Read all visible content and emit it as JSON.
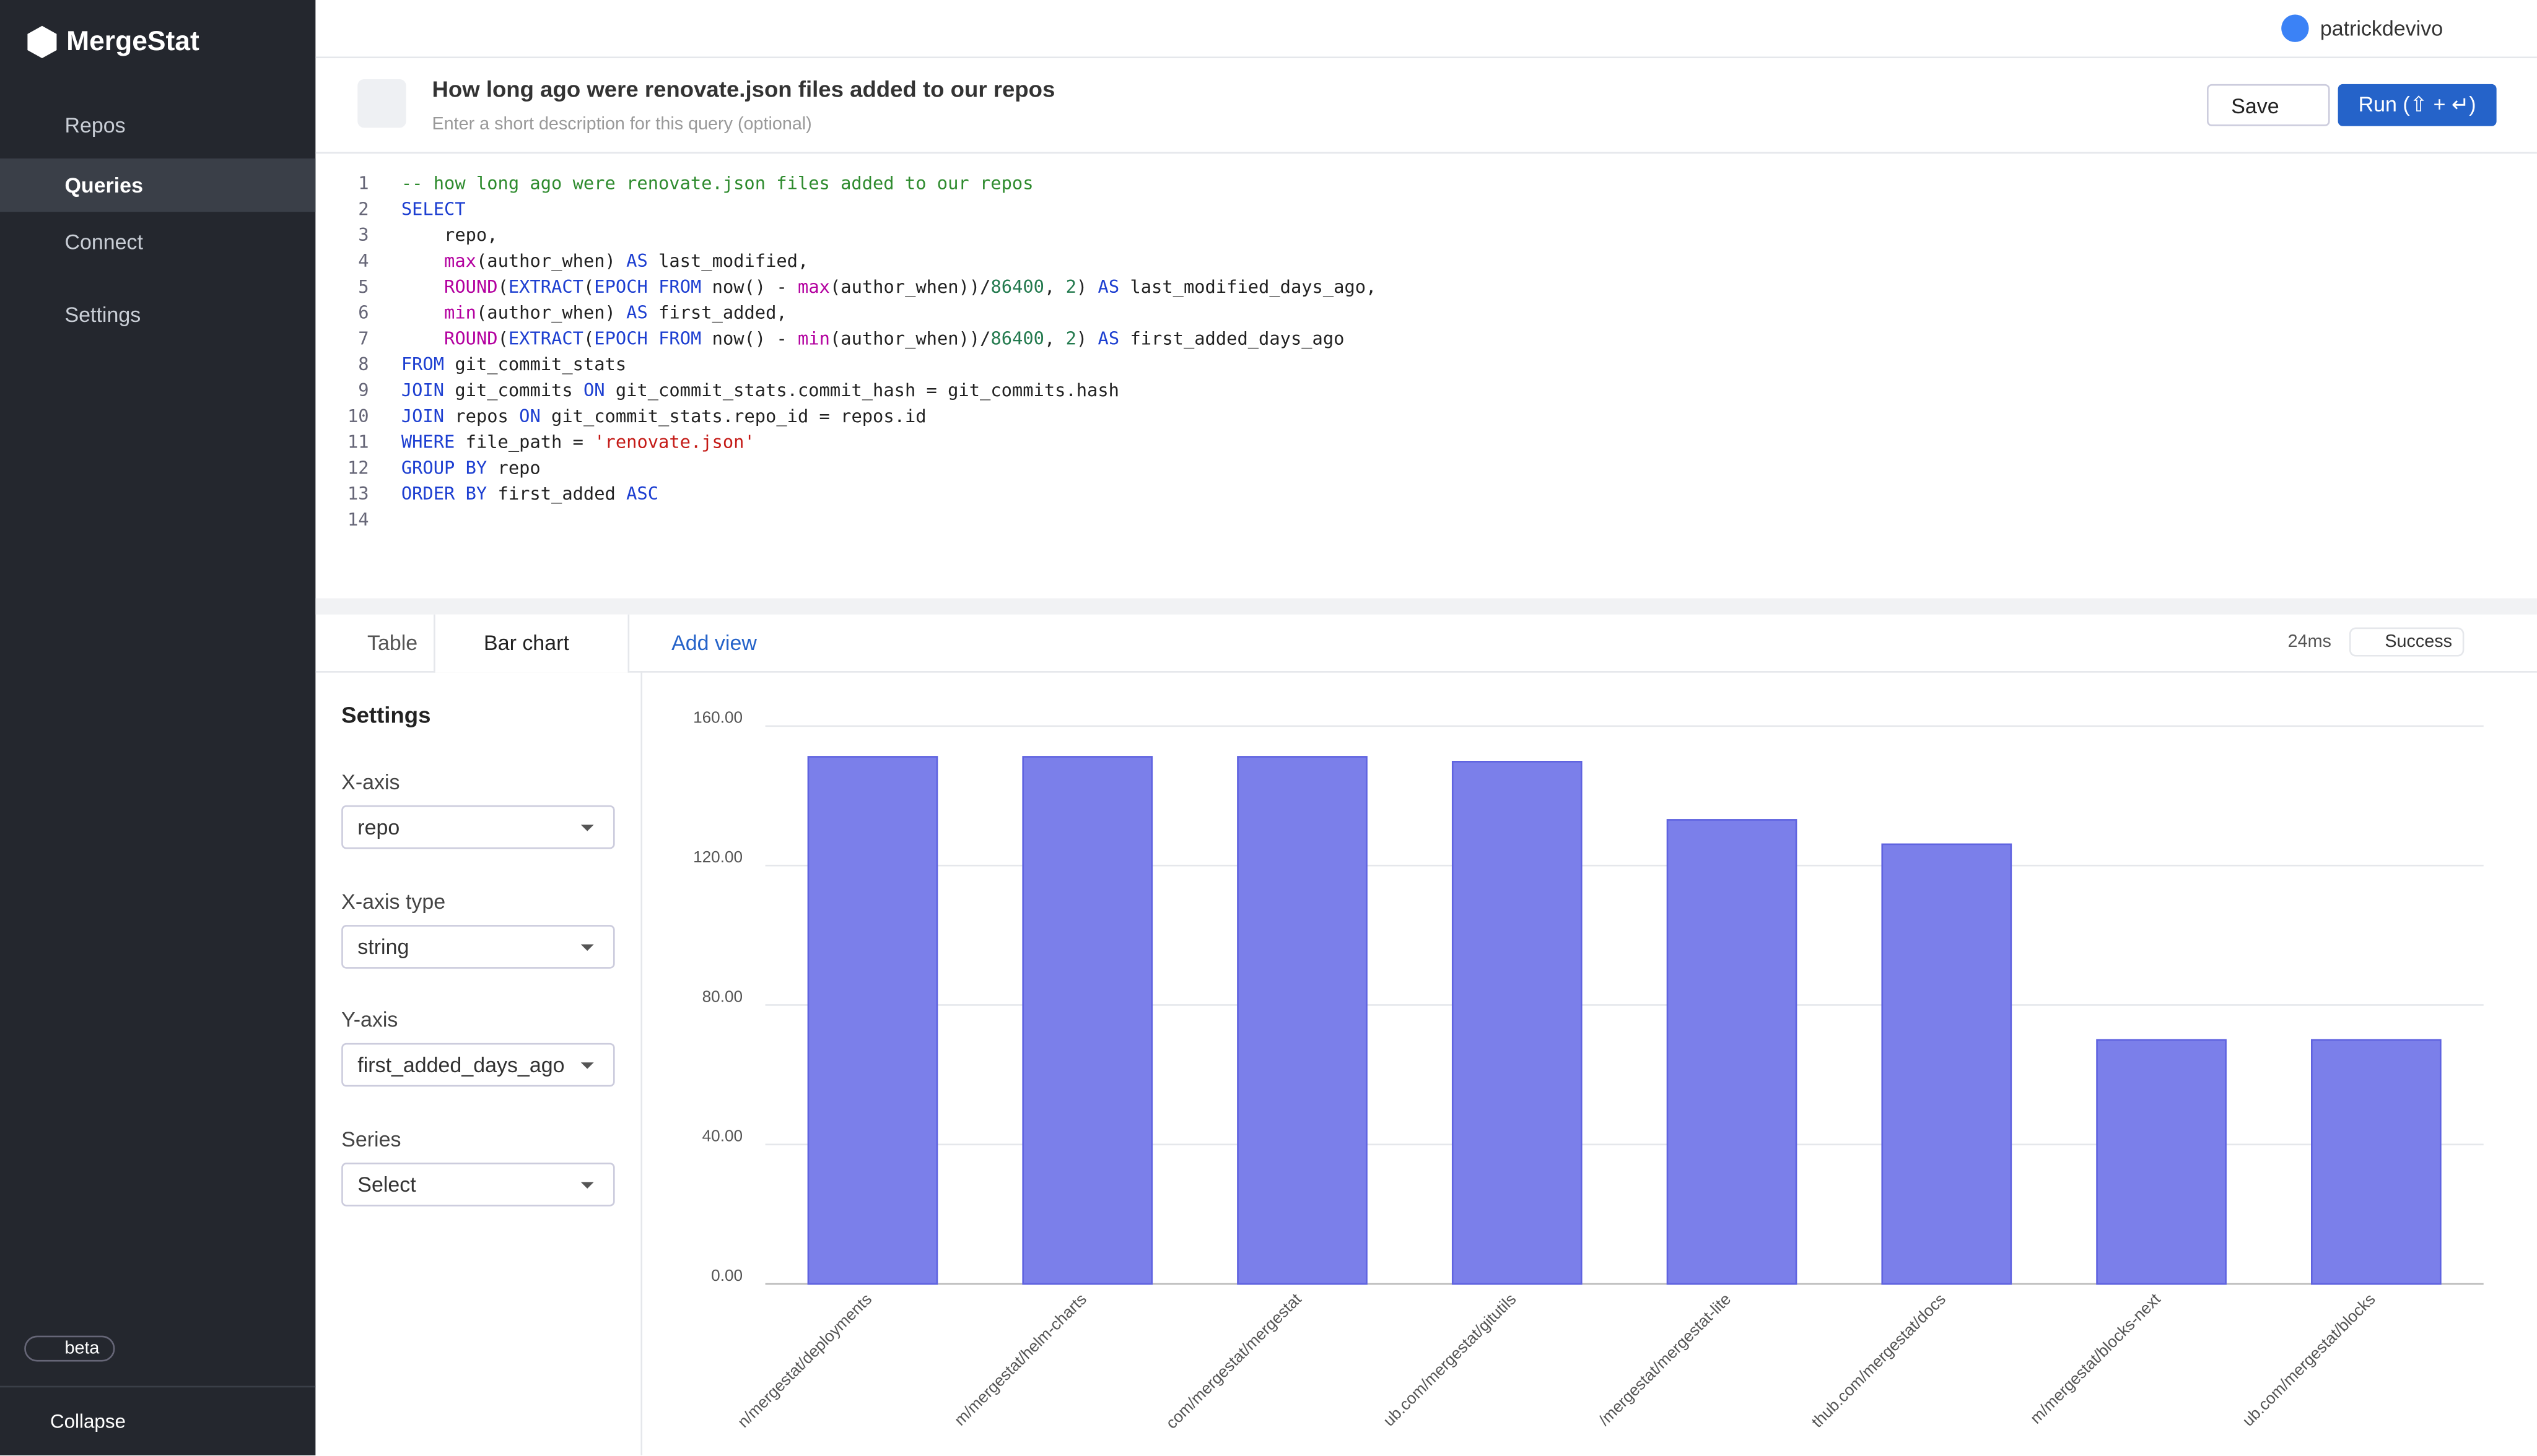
{
  "app": {
    "name": "MergeStat",
    "user": "patrickdevivo",
    "badge": "beta",
    "collapse": "Collapse"
  },
  "sidebar": {
    "items": [
      "Repos",
      "Queries",
      "Connect",
      "Settings"
    ]
  },
  "query": {
    "title": "How long ago were renovate.json files added to our repos",
    "description": "Enter a short description for this query (optional)",
    "save": "Save",
    "run": "Run (⇧ + ↵)"
  },
  "code": {
    "lines": [
      "-- how long ago were renovate.json files added to our repos",
      "SELECT",
      "    repo,",
      "    max(author_when) AS last_modified,",
      "    ROUND(EXTRACT(EPOCH FROM now() - max(author_when))/86400, 2) AS last_modified_days_ago,",
      "    min(author_when) AS first_added,",
      "    ROUND(EXTRACT(EPOCH FROM now() - min(author_when))/86400, 2) AS first_added_days_ago",
      "FROM git_commit_stats",
      "JOIN git_commits ON git_commit_stats.commit_hash = git_commits.hash",
      "JOIN repos ON git_commit_stats.repo_id = repos.id",
      "WHERE file_path = 'renovate.json'",
      "GROUP BY repo",
      "ORDER BY first_added ASC",
      ""
    ]
  },
  "tabs": {
    "table": "Table",
    "chart": "Bar chart",
    "add": "Add view",
    "time": "24ms",
    "status": "Success"
  },
  "settings": {
    "title": "Settings",
    "fields": [
      {
        "label": "X-axis",
        "value": "repo"
      },
      {
        "label": "X-axis type",
        "value": "string"
      },
      {
        "label": "Y-axis",
        "value": "first_added_days_ago"
      },
      {
        "label": "Series",
        "value": "Select"
      }
    ]
  },
  "chart_data": {
    "type": "bar",
    "categories": [
      "n/mergestat/deployments",
      "m/mergestat/helm-charts",
      "com/mergestat/mergestat",
      "ub.com/mergestat/gitutils",
      "/mergestat/mergestat-lite",
      "thub.com/mergestat/docs",
      "m/mergestat/blocks-next",
      "ub.com/mergestat/blocks"
    ],
    "values": [
      151.2,
      151.2,
      151.2,
      149.8,
      133.1,
      126.1,
      70.0,
      70.0
    ],
    "color": "#7b7fea",
    "ylim": [
      0,
      160
    ],
    "yticks": [
      {
        "value": 0,
        "label": "0.00"
      },
      {
        "value": 40,
        "label": "40.00"
      },
      {
        "value": 80,
        "label": "80.00"
      },
      {
        "value": 120,
        "label": "120.00"
      },
      {
        "value": 160,
        "label": "160.00"
      }
    ],
    "grid": true
  }
}
